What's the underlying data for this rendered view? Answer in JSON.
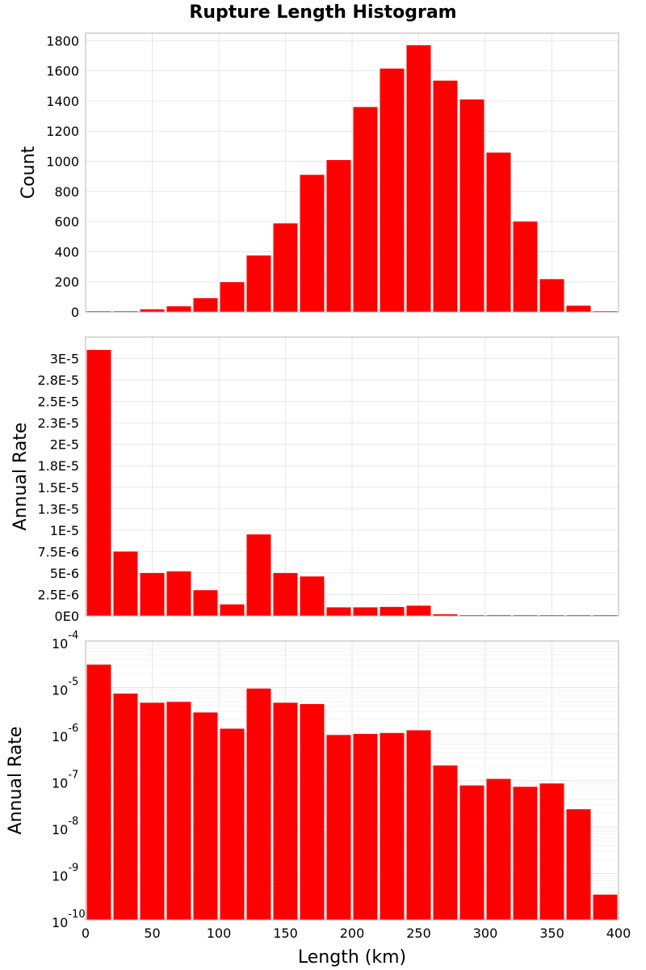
{
  "title": "Rupture Length Histogram",
  "chart_data": [
    {
      "type": "bar",
      "name": "count",
      "ylabel": "Count",
      "xlabel": "",
      "xlim": [
        0,
        400
      ],
      "ylim": [
        0,
        1850
      ],
      "yscale": "linear",
      "bin_width": 20,
      "bin_centers": [
        10,
        30,
        50,
        70,
        90,
        110,
        130,
        150,
        170,
        190,
        210,
        230,
        250,
        270,
        290,
        310,
        330,
        350,
        370,
        390
      ],
      "values": [
        2,
        5,
        18,
        38,
        92,
        198,
        375,
        588,
        910,
        1008,
        1360,
        1615,
        1770,
        1535,
        1410,
        1058,
        600,
        218,
        42,
        3
      ],
      "yticks": [
        0,
        200,
        400,
        600,
        800,
        1000,
        1200,
        1400,
        1600,
        1800
      ],
      "ytick_labels": [
        "0",
        "200",
        "400",
        "600",
        "800",
        "1000",
        "1200",
        "1400",
        "1600",
        "1800"
      ],
      "bar_color": "#ff0000",
      "grid": true
    },
    {
      "type": "bar",
      "name": "rate-linear",
      "ylabel": "Annual Rate",
      "xlabel": "",
      "xlim": [
        0,
        400
      ],
      "ylim": [
        0,
        3.25e-05
      ],
      "yscale": "linear",
      "bin_width": 20,
      "bin_centers": [
        10,
        30,
        50,
        70,
        90,
        110,
        130,
        150,
        170,
        190,
        210,
        230,
        250,
        270,
        290,
        310,
        330,
        350,
        370,
        390
      ],
      "values": [
        3.1e-05,
        7.5e-06,
        5e-06,
        5.2e-06,
        3e-06,
        1.35e-06,
        9.5e-06,
        5e-06,
        4.6e-06,
        1e-06,
        1e-06,
        1.05e-06,
        1.2e-06,
        2e-07,
        8e-08,
        1e-07,
        7e-08,
        8e-08,
        2.5e-08,
        3e-10
      ],
      "yticks": [
        0,
        2.5e-06,
        5e-06,
        7.5e-06,
        1e-05,
        1.25e-05,
        1.5e-05,
        1.75e-05,
        2e-05,
        2.25e-05,
        2.5e-05,
        2.75e-05,
        3e-05
      ],
      "ytick_labels": [
        "0E0",
        "2.5E-6",
        "5E-6",
        "7.5E-6",
        "1E-5",
        "1.3E-5",
        "1.5E-5",
        "1.8E-5",
        "2E-5",
        "2.3E-5",
        "2.5E-5",
        "2.8E-5",
        "3E-5"
      ],
      "bar_color": "#ff0000",
      "grid": true
    },
    {
      "type": "bar",
      "name": "rate-log",
      "ylabel": "Annual Rate",
      "xlabel": "Length (km)",
      "xlim": [
        0,
        400
      ],
      "ylim": [
        1e-10,
        0.0001
      ],
      "yscale": "log",
      "bin_width": 20,
      "bin_centers": [
        10,
        30,
        50,
        70,
        90,
        110,
        130,
        150,
        170,
        190,
        210,
        230,
        250,
        270,
        290,
        310,
        330,
        350,
        370,
        390
      ],
      "values": [
        3.1e-05,
        7.4e-06,
        4.7e-06,
        4.9e-06,
        2.9e-06,
        1.3e-06,
        9.5e-06,
        4.7e-06,
        4.4e-06,
        9.5e-07,
        1e-06,
        1.05e-06,
        1.2e-06,
        2.1e-07,
        7.8e-08,
        1.08e-07,
        7.3e-08,
        8.6e-08,
        2.4e-08,
        3.5e-10
      ],
      "ytick_bases": [
        "10",
        "10",
        "10",
        "10",
        "10",
        "10",
        "10"
      ],
      "ytick_exps": [
        "-10",
        "-9",
        "-8",
        "-7",
        "-6",
        "-5",
        "-4"
      ],
      "xticks": [
        0,
        50,
        100,
        150,
        200,
        250,
        300,
        350,
        400
      ],
      "xtick_labels": [
        "0",
        "50",
        "100",
        "150",
        "200",
        "250",
        "300",
        "350",
        "400"
      ],
      "bar_color": "#ff0000",
      "grid": true
    }
  ]
}
